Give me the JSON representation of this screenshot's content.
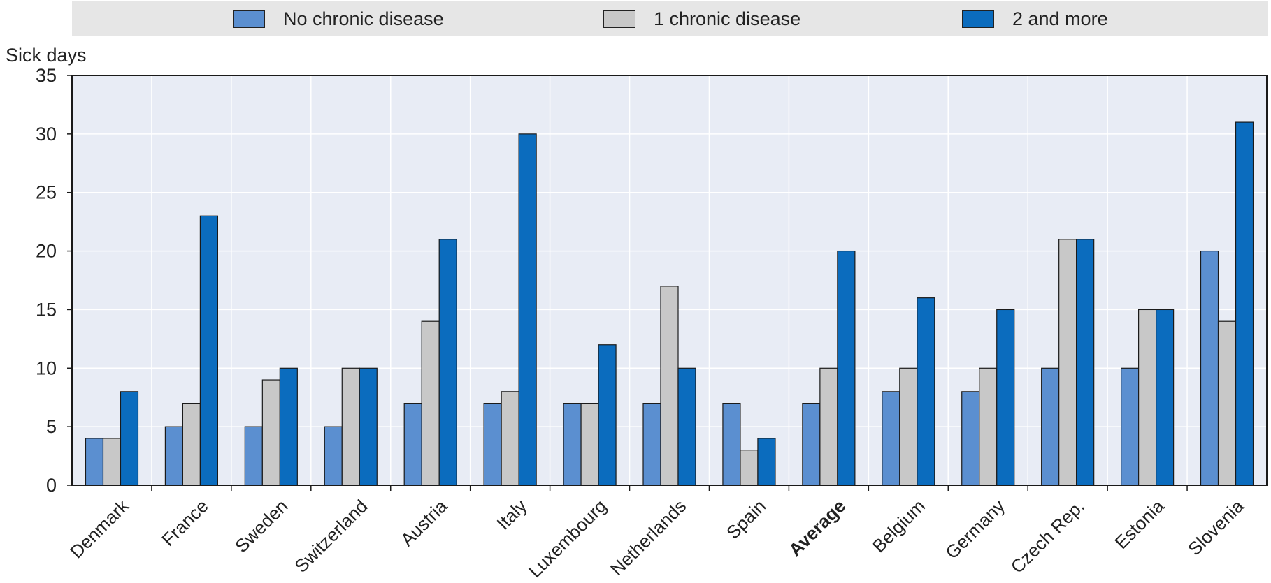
{
  "chart_data": {
    "type": "bar",
    "categories": [
      "Denmark",
      "France",
      "Sweden",
      "Switzerland",
      "Austria",
      "Italy",
      "Luxembourg",
      "Netherlands",
      "Spain",
      "Average",
      "Belgium",
      "Germany",
      "Czech Rep.",
      "Estonia",
      "Slovenia"
    ],
    "emphasized_category": "Average",
    "series": [
      {
        "name": "No chronic disease",
        "color": "#5b8fd0",
        "values": [
          4,
          5,
          5,
          5,
          7,
          7,
          7,
          7,
          7,
          7,
          8,
          8,
          10,
          10,
          20
        ]
      },
      {
        "name": "1 chronic disease",
        "color": "#c8c8c8",
        "values": [
          4,
          7,
          9,
          10,
          14,
          8,
          7,
          17,
          3,
          10,
          10,
          10,
          21,
          15,
          14
        ]
      },
      {
        "name": "2 and more",
        "color": "#0b6cbe",
        "values": [
          8,
          23,
          10,
          10,
          21,
          30,
          12,
          10,
          4,
          20,
          16,
          15,
          21,
          15,
          31
        ]
      }
    ],
    "ylabel": "Sick days",
    "ylim": [
      0,
      35
    ],
    "yticks": [
      0,
      5,
      10,
      15,
      20,
      25,
      30,
      35
    ],
    "grid": true,
    "legend_position": "top"
  }
}
